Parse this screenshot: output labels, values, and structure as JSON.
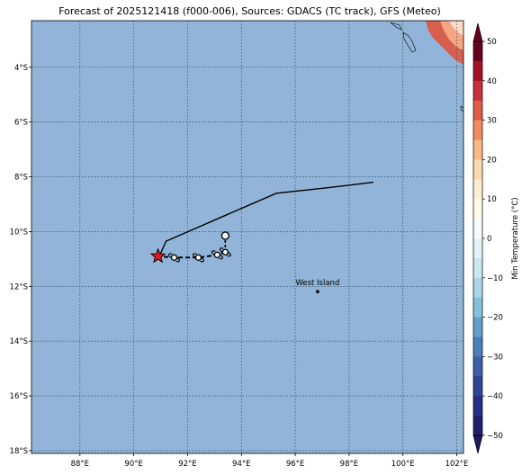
{
  "title": "Forecast of 2025121418 (f000-006), Sources: GDACS (TC track), GFS (Meteo)",
  "map": {
    "lon_range": [
      86.2,
      102.25
    ],
    "lat_range": [
      -18.1,
      -2.3
    ],
    "lon_ticks": [
      "88°E",
      "90°E",
      "92°E",
      "94°E",
      "96°E",
      "98°E",
      "100°E",
      "102°E"
    ],
    "lat_ticks": [
      "4°S",
      "6°S",
      "8°S",
      "10°S",
      "12°S",
      "14°S",
      "16°S",
      "18°S"
    ],
    "ocean_color": "#91b4d8",
    "grid": "dotted"
  },
  "place": {
    "name": "West Island",
    "lon": 96.83,
    "lat": -12.19
  },
  "track": [
    {
      "lon": 98.9,
      "lat": -8.2
    },
    {
      "lon": 97.2,
      "lat": -8.4
    },
    {
      "lon": 95.3,
      "lat": -8.6
    },
    {
      "lon": 91.2,
      "lat": -10.35
    },
    {
      "lon": 90.95,
      "lat": -10.9
    }
  ],
  "forecast_positions": [
    {
      "lon": 93.4,
      "lat": -10.15,
      "symbol": "low-circle"
    },
    {
      "lon": 93.4,
      "lat": -10.75,
      "symbol": "tc-symbol"
    },
    {
      "lon": 93.1,
      "lat": -10.85,
      "symbol": "tc-symbol"
    },
    {
      "lon": 92.4,
      "lat": -10.95,
      "symbol": "tc-symbol"
    },
    {
      "lon": 91.5,
      "lat": -10.95,
      "symbol": "tc-symbol"
    }
  ],
  "current_position": {
    "lon": 90.9,
    "lat": -10.9,
    "symbol": "red-star"
  },
  "colorbar": {
    "label": "Min Temperature (°C)",
    "ticks": [
      "50",
      "40",
      "30",
      "20",
      "10",
      "0",
      "−10",
      "−20",
      "−30",
      "−40",
      "−50"
    ],
    "colors": [
      "#67001f",
      "#b2182b",
      "#d6604d",
      "#f4a582",
      "#fddbc7",
      "#fff7ec",
      "#e0f3f8",
      "#abd9e9",
      "#74add1",
      "#4575b4",
      "#313695",
      "#1a1a6e"
    ]
  }
}
